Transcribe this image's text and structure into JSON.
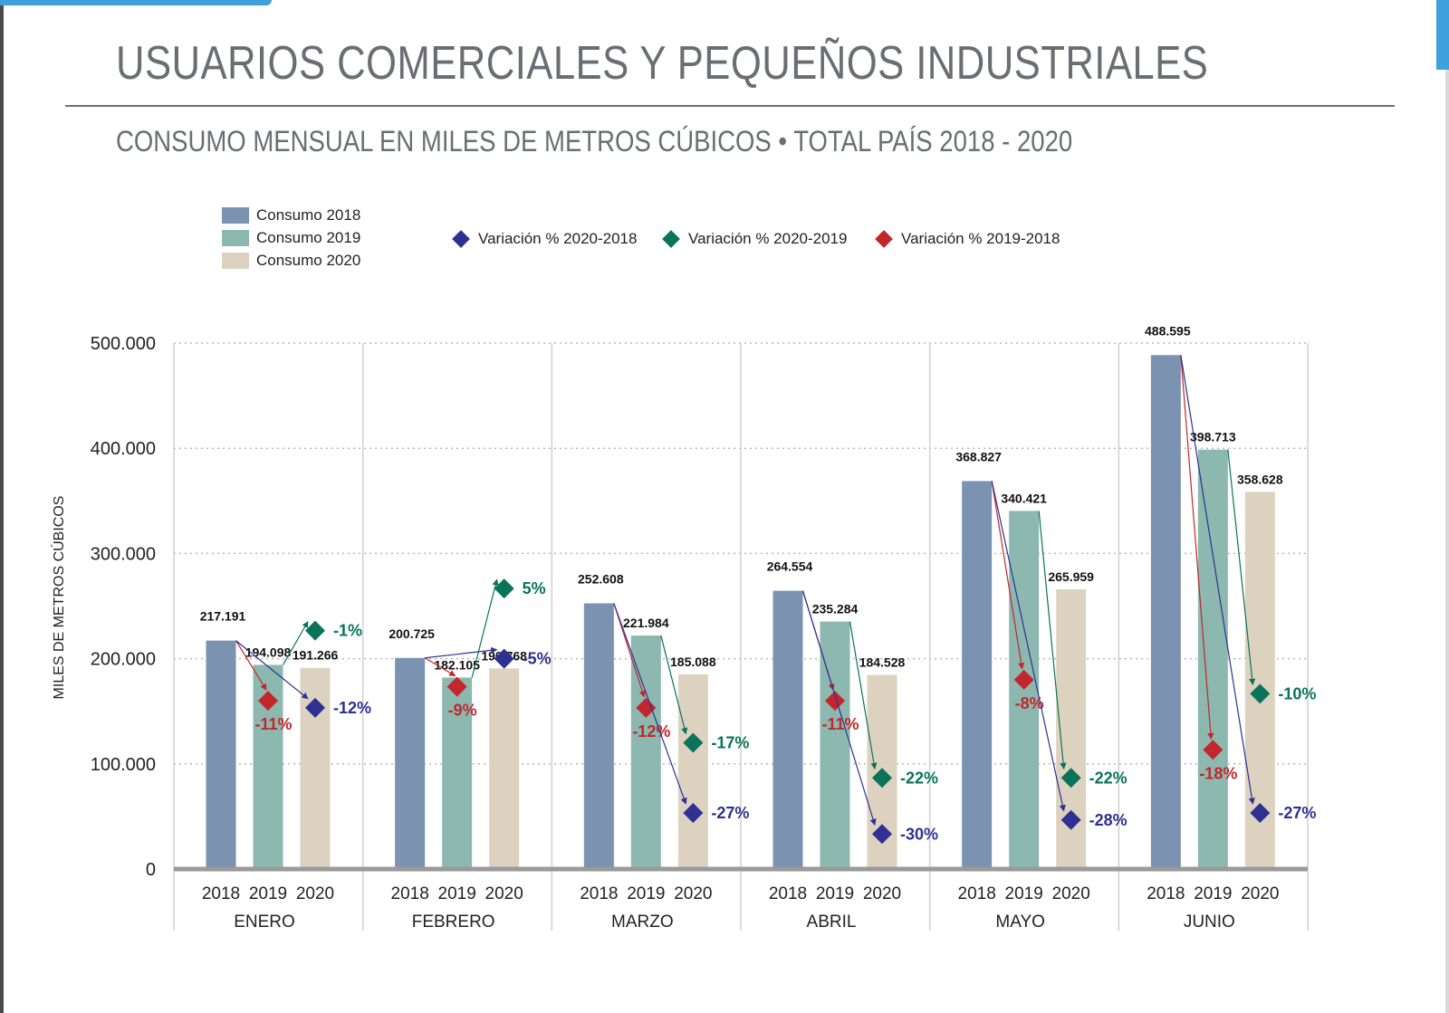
{
  "page": {
    "title": "USUARIOS COMERCIALES Y PEQUEÑOS INDUSTRIALES",
    "subtitle": "CONSUMO MENSUAL EN MILES DE METROS CÚBICOS •  TOTAL PAÍS 2018 - 2020"
  },
  "legend": {
    "consumo_2018": "Consumo 2018",
    "consumo_2019": "Consumo 2019",
    "consumo_2020": "Consumo 2020",
    "var_2020_2018": "Variación % 2020-2018",
    "var_2020_2019": "Variación % 2020-2019",
    "var_2019_2018": "Variación % 2019-2018"
  },
  "colors": {
    "bar_2018": "#7b93b0",
    "bar_2019": "#8cb8b0",
    "bar_2020": "#ddd2c0",
    "var_2020_2018": "#2e3192",
    "var_2020_2019": "#0a7358",
    "var_2019_2018": "#c1272d"
  },
  "chart_data": {
    "type": "bar",
    "ylabel": "MILES DE METROS CÚBICOS",
    "ylim": [
      0,
      500000
    ],
    "yticks": [
      0,
      100000,
      200000,
      300000,
      400000,
      500000
    ],
    "ytick_labels": [
      "0",
      "100.000",
      "200.000",
      "300.000",
      "400.000",
      "500.000"
    ],
    "grid": true,
    "legend_position": "top",
    "year_labels": [
      "2018",
      "2019",
      "2020"
    ],
    "months": [
      {
        "name": "ENERO",
        "values": [
          217191,
          194098,
          191266
        ],
        "labels": [
          "217.191",
          "194.098",
          "191.266"
        ],
        "var_2019_2018": "-11%",
        "var_2020_2019": "-1%",
        "var_2020_2018": "-12%"
      },
      {
        "name": "FEBRERO",
        "values": [
          200725,
          182105,
          190768
        ],
        "labels": [
          "200.725",
          "182.105",
          "190.768"
        ],
        "var_2019_2018": "-9%",
        "var_2020_2019": "5%",
        "var_2020_2018": "-5%"
      },
      {
        "name": "MARZO",
        "values": [
          252608,
          221984,
          185088
        ],
        "labels": [
          "252.608",
          "221.984",
          "185.088"
        ],
        "var_2019_2018": "-12%",
        "var_2020_2019": "-17%",
        "var_2020_2018": "-27%"
      },
      {
        "name": "ABRIL",
        "values": [
          264554,
          235284,
          184528
        ],
        "labels": [
          "264.554",
          "235.284",
          "184.528"
        ],
        "var_2019_2018": "-11%",
        "var_2020_2019": "-22%",
        "var_2020_2018": "-30%"
      },
      {
        "name": "MAYO",
        "values": [
          368827,
          340421,
          265959
        ],
        "labels": [
          "368.827",
          "340.421",
          "265.959"
        ],
        "var_2019_2018": "-8%",
        "var_2020_2019": "-22%",
        "var_2020_2018": "-28%"
      },
      {
        "name": "JUNIO",
        "values": [
          488595,
          398713,
          358628
        ],
        "labels": [
          "488.595",
          "398.713",
          "358.628"
        ],
        "var_2019_2018": "-18%",
        "var_2020_2019": "-10%",
        "var_2020_2018": "-27%"
      }
    ]
  }
}
